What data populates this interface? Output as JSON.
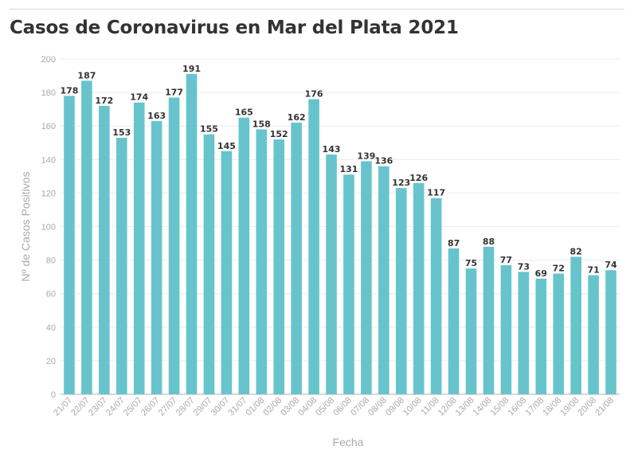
{
  "title": "Casos de Coronavirus en Mar del Plata 2021",
  "colors": {
    "bar": "#67c4cc",
    "grid": "#ececec",
    "axis": "#b0b0b0",
    "tick": "#aaaaaa",
    "label": "#333333"
  },
  "chart_data": {
    "type": "bar",
    "title": "Casos de Coronavirus en Mar del Plata 2021",
    "xlabel": "Fecha",
    "ylabel": "Nº de Casos Positivos",
    "ylim": [
      0,
      200
    ],
    "yticks": [
      0,
      20,
      40,
      60,
      80,
      100,
      120,
      140,
      160,
      180,
      200
    ],
    "grid": true,
    "data_labels": true,
    "categories": [
      "21/07",
      "22/07",
      "23/07",
      "24/07",
      "25/07",
      "26/07",
      "27/07",
      "28/07",
      "29/07",
      "30/07",
      "31/07",
      "01/08",
      "02/08",
      "03/08",
      "04/08",
      "05/08",
      "06/08",
      "07/08",
      "08/08",
      "09/08",
      "10/08",
      "11/08",
      "12/08",
      "13/08",
      "14/08",
      "15/08",
      "16/08",
      "17/08",
      "18/08",
      "19/08",
      "20/08",
      "21/08"
    ],
    "values": [
      178,
      187,
      172,
      153,
      174,
      163,
      177,
      191,
      155,
      145,
      165,
      158,
      152,
      162,
      176,
      143,
      131,
      139,
      136,
      123,
      126,
      117,
      87,
      75,
      88,
      77,
      73,
      69,
      72,
      82,
      71,
      74
    ]
  }
}
